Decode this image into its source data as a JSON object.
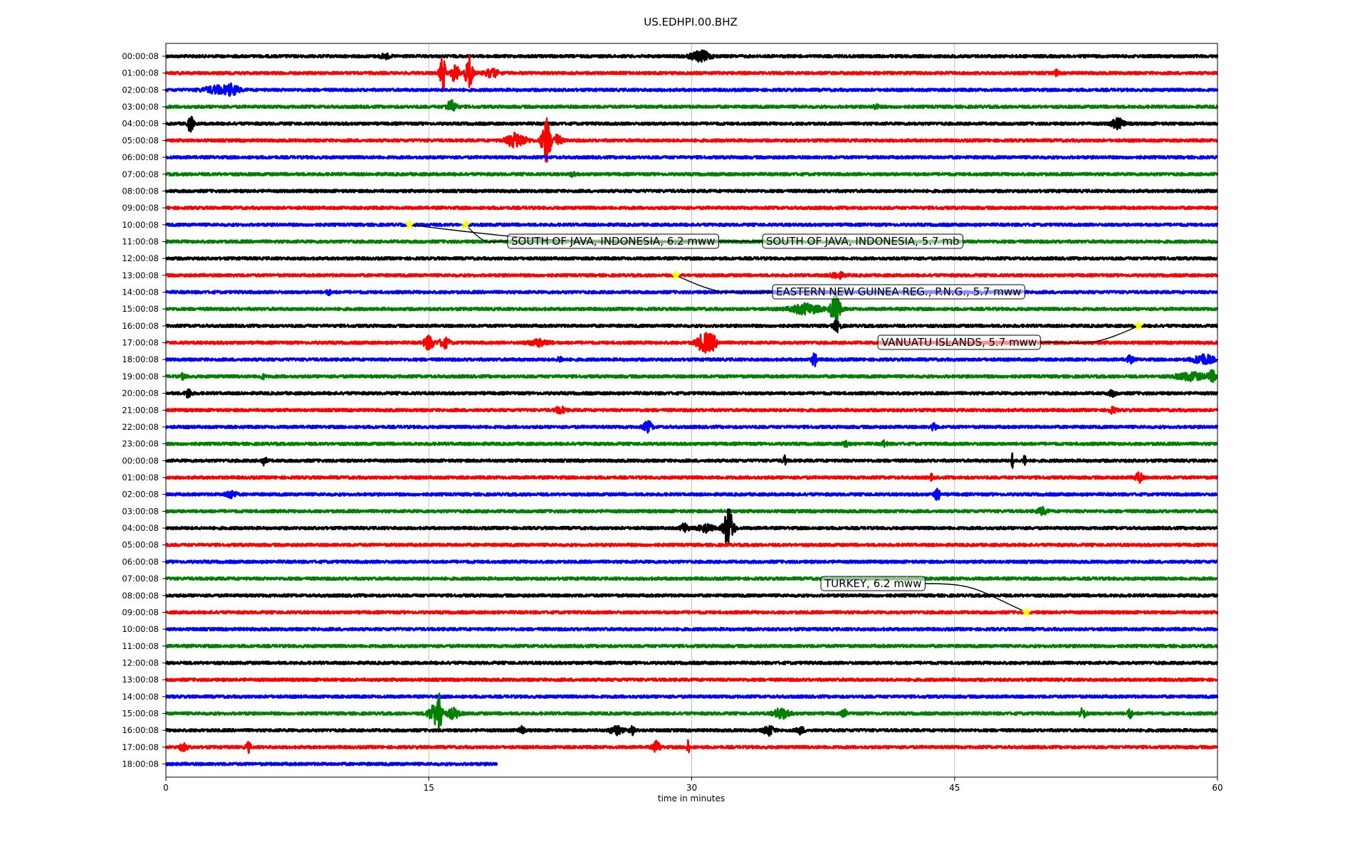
{
  "chart_data": {
    "type": "line",
    "title": "US.EDHPI.00.BHZ",
    "xlabel": "time in minutes",
    "ylabel": "",
    "xlim": [
      0,
      60
    ],
    "x_ticks": [
      "0",
      "15",
      "30",
      "45",
      "60"
    ],
    "grid": "vertical",
    "colors": [
      "#000000",
      "#ff0000",
      "#0000ff",
      "#008000"
    ],
    "rows": [
      "00:00:08",
      "01:00:08",
      "02:00:08",
      "03:00:08",
      "04:00:08",
      "05:00:08",
      "06:00:08",
      "07:00:08",
      "08:00:08",
      "09:00:08",
      "10:00:08",
      "11:00:08",
      "12:00:08",
      "13:00:08",
      "14:00:08",
      "15:00:08",
      "16:00:08",
      "17:00:08",
      "18:00:08",
      "19:00:08",
      "20:00:08",
      "21:00:08",
      "22:00:08",
      "23:00:08",
      "00:00:08",
      "01:00:08",
      "02:00:08",
      "03:00:08",
      "04:00:08",
      "05:00:08",
      "06:00:08",
      "07:00:08",
      "08:00:08",
      "09:00:08",
      "10:00:08",
      "11:00:08",
      "12:00:08",
      "13:00:08",
      "14:00:08",
      "15:00:08",
      "16:00:08",
      "17:00:08",
      "18:00:08"
    ],
    "last_row_end_minute": 18.9,
    "bursts": [
      {
        "row": 0,
        "minute": 12.5,
        "amp": 0.25,
        "width": 0.4
      },
      {
        "row": 0,
        "minute": 30.5,
        "amp": 0.55,
        "width": 0.8
      },
      {
        "row": 1,
        "minute": 15.8,
        "amp": 1.8,
        "width": 0.25
      },
      {
        "row": 1,
        "minute": 16.5,
        "amp": 1.0,
        "width": 0.3
      },
      {
        "row": 1,
        "minute": 17.3,
        "amp": 1.9,
        "width": 0.3
      },
      {
        "row": 1,
        "minute": 18.6,
        "amp": 0.4,
        "width": 0.6
      },
      {
        "row": 1,
        "minute": 50.8,
        "amp": 0.3,
        "width": 0.15
      },
      {
        "row": 2,
        "minute": 3.0,
        "amp": 0.4,
        "width": 1.2
      },
      {
        "row": 2,
        "minute": 3.8,
        "amp": 0.45,
        "width": 0.5
      },
      {
        "row": 3,
        "minute": 16.3,
        "amp": 0.65,
        "width": 0.4
      },
      {
        "row": 3,
        "minute": 40.5,
        "amp": 0.25,
        "width": 0.2
      },
      {
        "row": 4,
        "minute": 1.4,
        "amp": 0.85,
        "width": 0.25
      },
      {
        "row": 4,
        "minute": 54.3,
        "amp": 0.55,
        "width": 0.5
      },
      {
        "row": 5,
        "minute": 20.0,
        "amp": 0.8,
        "width": 0.8
      },
      {
        "row": 5,
        "minute": 21.7,
        "amp": 2.6,
        "width": 0.35
      },
      {
        "row": 5,
        "minute": 22.3,
        "amp": 0.6,
        "width": 0.4
      },
      {
        "row": 7,
        "minute": 23.2,
        "amp": 0.2,
        "width": 0.2
      },
      {
        "row": 13,
        "minute": 38.3,
        "amp": 0.35,
        "width": 0.5
      },
      {
        "row": 14,
        "minute": 9.3,
        "amp": 0.25,
        "width": 0.2
      },
      {
        "row": 15,
        "minute": 36.5,
        "amp": 0.55,
        "width": 1.2
      },
      {
        "row": 15,
        "minute": 38.2,
        "amp": 1.6,
        "width": 0.4
      },
      {
        "row": 16,
        "minute": 38.3,
        "amp": 0.6,
        "width": 0.3
      },
      {
        "row": 17,
        "minute": 15.0,
        "amp": 0.75,
        "width": 0.4
      },
      {
        "row": 17,
        "minute": 15.9,
        "amp": 0.55,
        "width": 0.4
      },
      {
        "row": 17,
        "minute": 21.3,
        "amp": 0.35,
        "width": 0.8
      },
      {
        "row": 17,
        "minute": 30.7,
        "amp": 1.0,
        "width": 0.6
      },
      {
        "row": 17,
        "minute": 31.2,
        "amp": 0.6,
        "width": 0.4
      },
      {
        "row": 18,
        "minute": 22.5,
        "amp": 0.3,
        "width": 0.2
      },
      {
        "row": 18,
        "minute": 37.0,
        "amp": 0.7,
        "width": 0.2
      },
      {
        "row": 18,
        "minute": 55.0,
        "amp": 0.35,
        "width": 0.3
      },
      {
        "row": 18,
        "minute": 59.2,
        "amp": 0.55,
        "width": 0.8
      },
      {
        "row": 19,
        "minute": 1.0,
        "amp": 0.3,
        "width": 0.2
      },
      {
        "row": 19,
        "minute": 5.5,
        "amp": 0.25,
        "width": 0.2
      },
      {
        "row": 19,
        "minute": 58.5,
        "amp": 0.4,
        "width": 1.2
      },
      {
        "row": 19,
        "minute": 59.7,
        "amp": 0.55,
        "width": 0.3
      },
      {
        "row": 20,
        "minute": 1.3,
        "amp": 0.5,
        "width": 0.25
      },
      {
        "row": 20,
        "minute": 54.0,
        "amp": 0.3,
        "width": 0.3
      },
      {
        "row": 21,
        "minute": 22.5,
        "amp": 0.35,
        "width": 0.4
      },
      {
        "row": 21,
        "minute": 54.0,
        "amp": 0.3,
        "width": 0.3
      },
      {
        "row": 22,
        "minute": 27.5,
        "amp": 0.6,
        "width": 0.35
      },
      {
        "row": 22,
        "minute": 43.8,
        "amp": 0.4,
        "width": 0.2
      },
      {
        "row": 23,
        "minute": 38.8,
        "amp": 0.4,
        "width": 0.2
      },
      {
        "row": 23,
        "minute": 41.0,
        "amp": 0.3,
        "width": 0.2
      },
      {
        "row": 24,
        "minute": 5.6,
        "amp": 0.45,
        "width": 0.2
      },
      {
        "row": 24,
        "minute": 35.3,
        "amp": 0.5,
        "width": 0.15
      },
      {
        "row": 24,
        "minute": 48.3,
        "amp": 0.75,
        "width": 0.1
      },
      {
        "row": 24,
        "minute": 49.0,
        "amp": 0.8,
        "width": 0.1
      },
      {
        "row": 25,
        "minute": 43.7,
        "amp": 0.35,
        "width": 0.1
      },
      {
        "row": 25,
        "minute": 55.5,
        "amp": 0.55,
        "width": 0.3
      },
      {
        "row": 26,
        "minute": 3.7,
        "amp": 0.45,
        "width": 0.4
      },
      {
        "row": 26,
        "minute": 44.0,
        "amp": 0.8,
        "width": 0.2
      },
      {
        "row": 27,
        "minute": 50.0,
        "amp": 0.35,
        "width": 0.4
      },
      {
        "row": 28,
        "minute": 29.6,
        "amp": 0.55,
        "width": 0.3
      },
      {
        "row": 28,
        "minute": 30.8,
        "amp": 0.4,
        "width": 0.6
      },
      {
        "row": 28,
        "minute": 32.1,
        "amp": 2.2,
        "width": 0.4
      },
      {
        "row": 39,
        "minute": 15.3,
        "amp": 0.9,
        "width": 0.5
      },
      {
        "row": 39,
        "minute": 15.6,
        "amp": 2.1,
        "width": 0.25
      },
      {
        "row": 39,
        "minute": 16.4,
        "amp": 0.55,
        "width": 0.5
      },
      {
        "row": 39,
        "minute": 35.1,
        "amp": 0.55,
        "width": 0.6
      },
      {
        "row": 39,
        "minute": 38.7,
        "amp": 0.4,
        "width": 0.2
      },
      {
        "row": 39,
        "minute": 52.3,
        "amp": 0.5,
        "width": 0.3
      },
      {
        "row": 39,
        "minute": 55.0,
        "amp": 0.5,
        "width": 0.2
      },
      {
        "row": 40,
        "minute": 20.3,
        "amp": 0.4,
        "width": 0.2
      },
      {
        "row": 40,
        "minute": 25.7,
        "amp": 0.45,
        "width": 0.5
      },
      {
        "row": 40,
        "minute": 26.6,
        "amp": 0.5,
        "width": 0.2
      },
      {
        "row": 40,
        "minute": 34.4,
        "amp": 0.55,
        "width": 0.4
      },
      {
        "row": 40,
        "minute": 36.2,
        "amp": 0.4,
        "width": 0.3
      },
      {
        "row": 41,
        "minute": 1.0,
        "amp": 0.4,
        "width": 0.3
      },
      {
        "row": 41,
        "minute": 4.7,
        "amp": 0.55,
        "width": 0.2
      },
      {
        "row": 41,
        "minute": 28.0,
        "amp": 0.6,
        "width": 0.3
      },
      {
        "row": 41,
        "minute": 29.8,
        "amp": 1.0,
        "width": 0.1
      }
    ],
    "events": [
      {
        "label": "SOUTH OF JAVA, INDONESIA, 5.7 mb",
        "row": 10,
        "minute": 13.9
      },
      {
        "label": "SOUTH OF JAVA, INDONESIA, 6.2 mww",
        "row": 10,
        "minute": 17.1
      },
      {
        "label": "EASTERN NEW GUINEA REG., P.N.G., 5.7 mww",
        "row": 13,
        "minute": 29.1
      },
      {
        "label": "VANUATU ISLANDS, 5.7 mww",
        "row": 16,
        "minute": 55.5
      },
      {
        "label": "TURKEY, 6.2 mww",
        "row": 33,
        "minute": 49.1
      }
    ]
  }
}
